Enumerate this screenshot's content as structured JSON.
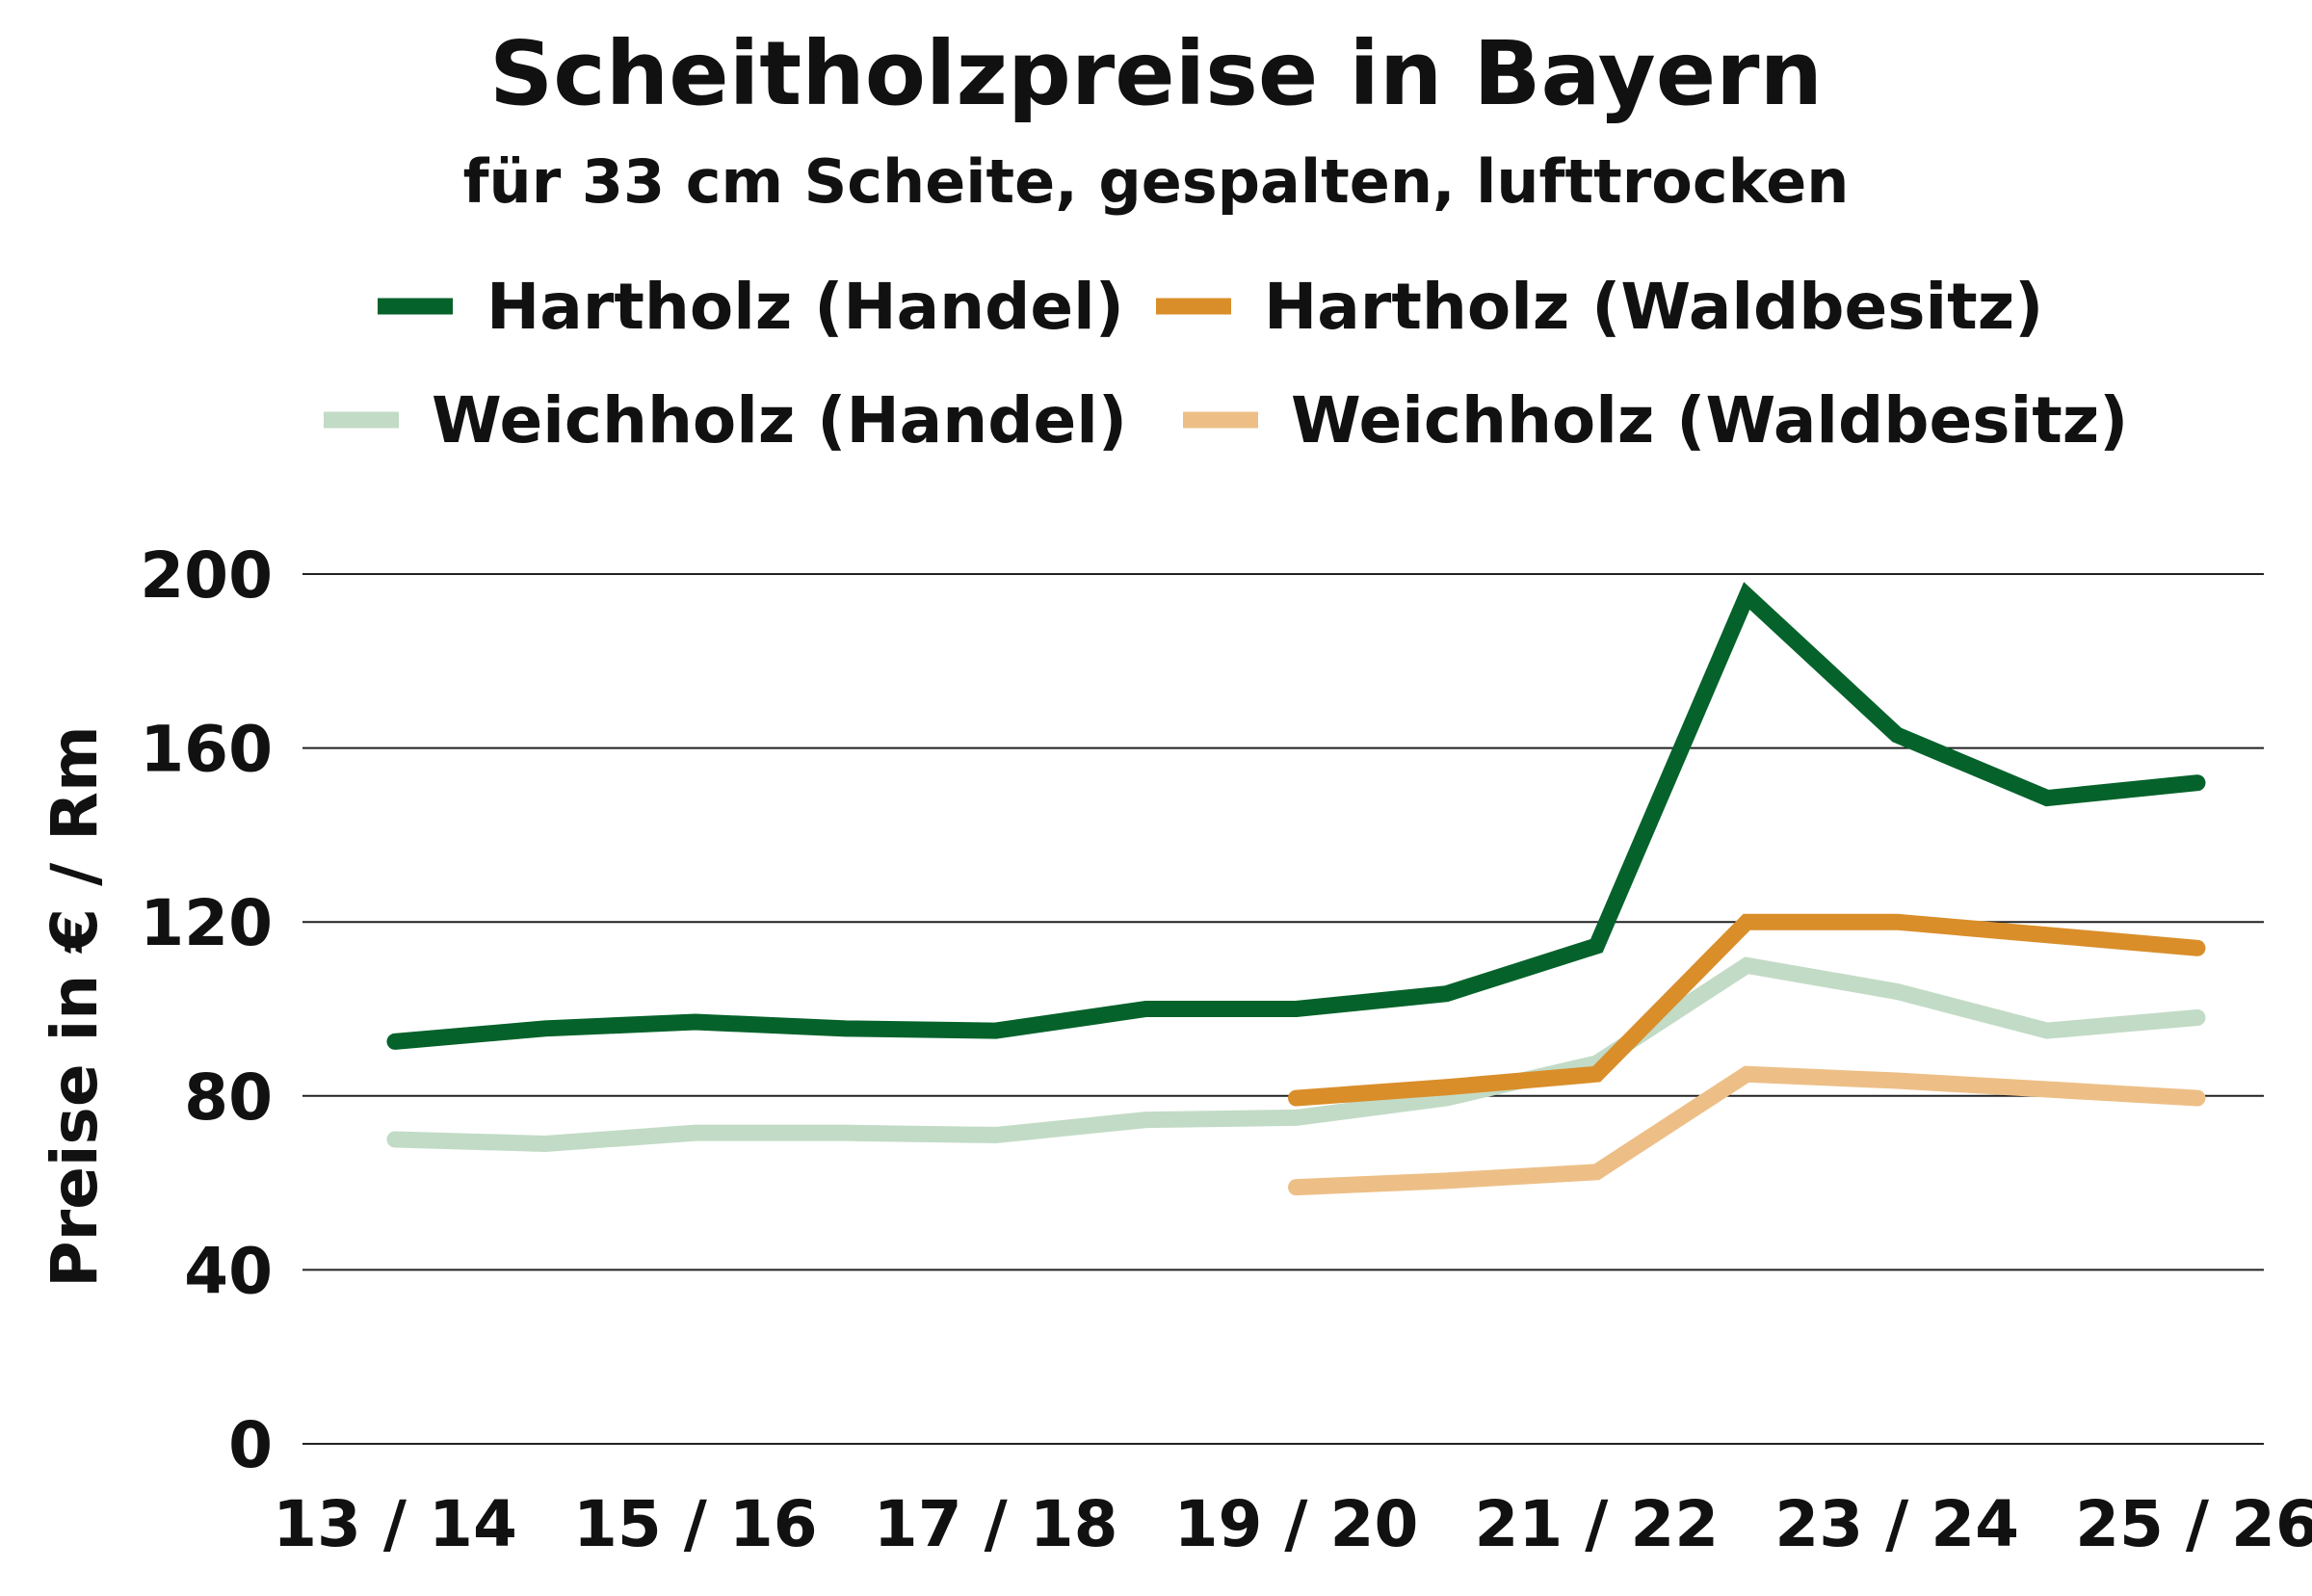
{
  "chart_data": {
    "type": "line",
    "title": "Scheitholzpreise in Bayern",
    "subtitle": "für 33 cm Scheite, gespalten, lufttrocken",
    "xlabel": "",
    "ylabel": "Preise in € / Rm",
    "ylim": [
      0,
      200
    ],
    "yticks": [
      0,
      40,
      80,
      120,
      160,
      200
    ],
    "grid": true,
    "legend_placement": "top",
    "categories": [
      "13/14",
      "14/15",
      "15/16",
      "16/17",
      "17/18",
      "18/19",
      "19/20",
      "20/21",
      "21/22",
      "22/23",
      "23/24",
      "24/25",
      "25/26"
    ],
    "xtick_labels": [
      "13 / 14",
      "15 / 16",
      "17 / 18",
      "19 / 20",
      "21 / 22",
      "23 / 24",
      "25 / 26"
    ],
    "series": [
      {
        "name": "Hartholz (Handel)",
        "color": "#05622B",
        "values": [
          92.5,
          95.5,
          97,
          95.5,
          95,
          100,
          100,
          103.5,
          114.5,
          195,
          163,
          148.5,
          152
        ]
      },
      {
        "name": "Hartholz (Waldbesitz)",
        "color": "#D98E2A",
        "values": [
          null,
          null,
          null,
          null,
          null,
          null,
          79.5,
          82,
          85,
          120,
          120,
          117,
          114
        ]
      },
      {
        "name": "Weichholz (Handel)",
        "color": "#C2DBC6",
        "values": [
          70,
          69,
          71.5,
          71.5,
          71,
          74.5,
          75,
          79.5,
          87.5,
          110,
          104,
          95,
          98
        ]
      },
      {
        "name": "Weichholz (Waldbesitz)",
        "color": "#EDBF87",
        "values": [
          null,
          null,
          null,
          null,
          null,
          null,
          59,
          60.5,
          62.5,
          85,
          83.5,
          81.5,
          79.5
        ]
      }
    ]
  }
}
